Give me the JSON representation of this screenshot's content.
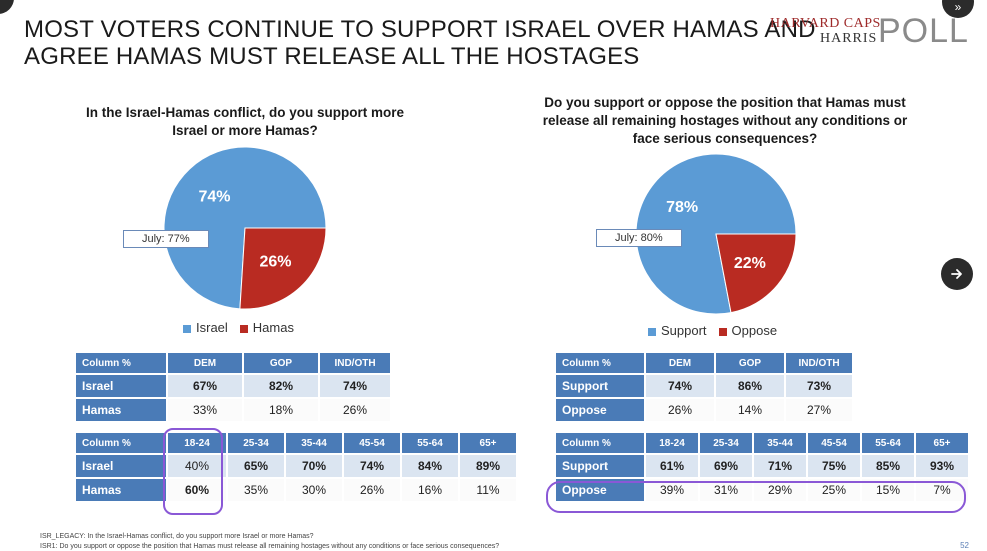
{
  "title": {
    "line1": "MOST VOTERS CONTINUE TO SUPPORT ISRAEL OVER HAMAS AND",
    "line2": "AGREE HAMAS MUST RELEASE ALL THE HOSTAGES"
  },
  "logo": {
    "line1": "HARVARD CAPS",
    "line2": "HARRIS",
    "line3": "POLL"
  },
  "colors": {
    "blue": "#5b9bd5",
    "red": "#b92b22",
    "header": "#4a7bb7",
    "highlight": "#8a58d6"
  },
  "left": {
    "question": "In the Israel-Hamas conflict, do you support more Israel or more Hamas?",
    "question_line1": "In the Israel-Hamas conflict, do you support more",
    "question_line2": "Israel or more Hamas?",
    "july": "July: 77%",
    "legend": [
      "Israel",
      "Hamas"
    ],
    "party_table": {
      "headers": [
        "Column %",
        "DEM",
        "GOP",
        "IND/OTH"
      ],
      "rows": [
        {
          "label": "Israel",
          "values": [
            "67%",
            "82%",
            "74%"
          ]
        },
        {
          "label": "Hamas",
          "values": [
            "33%",
            "18%",
            "26%"
          ]
        }
      ]
    },
    "age_table": {
      "headers": [
        "Column %",
        "18-24",
        "25-34",
        "35-44",
        "45-54",
        "55-64",
        "65+"
      ],
      "rows": [
        {
          "label": "Israel",
          "values": [
            "40%",
            "65%",
            "70%",
            "74%",
            "84%",
            "89%"
          ]
        },
        {
          "label": "Hamas",
          "values": [
            "60%",
            "35%",
            "30%",
            "26%",
            "16%",
            "11%"
          ]
        }
      ]
    }
  },
  "right": {
    "question_line1": "Do you support or oppose the position that Hamas must",
    "question_line2": "release all remaining hostages without any conditions or",
    "question_line3": "face serious consequences?",
    "july": "July: 80%",
    "legend": [
      "Support",
      "Oppose"
    ],
    "party_table": {
      "headers": [
        "Column %",
        "DEM",
        "GOP",
        "IND/OTH"
      ],
      "rows": [
        {
          "label": "Support",
          "values": [
            "74%",
            "86%",
            "73%"
          ]
        },
        {
          "label": "Oppose",
          "values": [
            "26%",
            "14%",
            "27%"
          ]
        }
      ]
    },
    "age_table": {
      "headers": [
        "Column %",
        "18-24",
        "25-34",
        "35-44",
        "45-54",
        "55-64",
        "65+"
      ],
      "rows": [
        {
          "label": "Support",
          "values": [
            "61%",
            "69%",
            "71%",
            "75%",
            "85%",
            "93%"
          ]
        },
        {
          "label": "Oppose",
          "values": [
            "39%",
            "31%",
            "29%",
            "25%",
            "15%",
            "7%"
          ]
        }
      ]
    }
  },
  "chart_data": [
    {
      "type": "pie",
      "title": "In the Israel-Hamas conflict, do you support more Israel or more Hamas?",
      "categories": [
        "Israel",
        "Hamas"
      ],
      "values": [
        74,
        26
      ],
      "labels": [
        "74%",
        "26%"
      ],
      "colors": [
        "#5b9bd5",
        "#b92b22"
      ],
      "annotation": "July: 77%",
      "legend": "bottom"
    },
    {
      "type": "pie",
      "title": "Do you support or oppose the position that Hamas must release all remaining hostages without any conditions or face serious consequences?",
      "categories": [
        "Support",
        "Oppose"
      ],
      "values": [
        78,
        22
      ],
      "labels": [
        "78%",
        "22%"
      ],
      "colors": [
        "#5b9bd5",
        "#b92b22"
      ],
      "annotation": "July: 80%",
      "legend": "bottom"
    }
  ],
  "footnotes": {
    "line1": "ISR_LEGACY: In the Israel-Hamas conflict, do you support more Israel or more Hamas?",
    "line2": "ISR1: Do you support or oppose the position that Hamas must release all remaining hostages without any conditions or face serious consequences?"
  },
  "page_number": "52",
  "nav": {
    "next_icon": "arrow-right-icon"
  }
}
